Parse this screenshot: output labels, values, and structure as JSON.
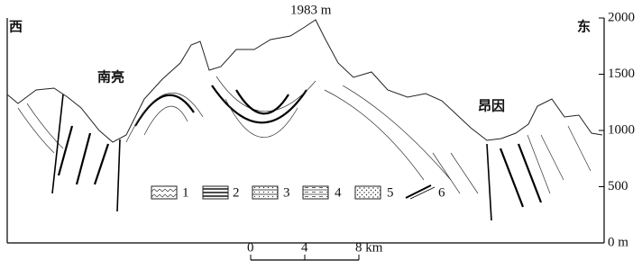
{
  "labels": {
    "west": "西",
    "east": "东",
    "peak": "1983 m",
    "place_left": "南亮",
    "place_right": "昂因"
  },
  "legend": [
    "1",
    "2",
    "3",
    "4",
    "5",
    "6"
  ],
  "elevation_axis": {
    "ticks": [
      {
        "value": 0,
        "label": "0 m"
      },
      500,
      1000,
      1500,
      2000
    ]
  },
  "scale_bar": {
    "ticks": [
      0,
      4,
      {
        "value": 8,
        "label": "8 km"
      }
    ]
  }
}
